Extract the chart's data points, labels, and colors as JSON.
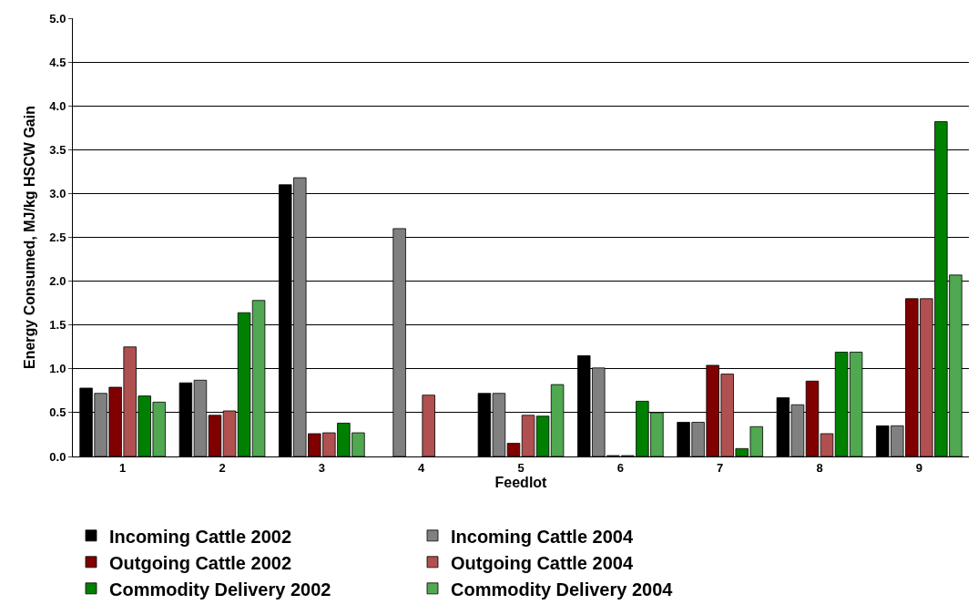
{
  "chart_data": {
    "type": "bar",
    "xlabel": "Feedlot",
    "ylabel": "Energy Consumed, MJ/kg HSCW Gain",
    "categories": [
      "1",
      "2",
      "3",
      "4",
      "5",
      "6",
      "7",
      "8",
      "9"
    ],
    "series": [
      {
        "name": "Incoming Cattle 2002",
        "color": "#000000",
        "values": [
          0.78,
          0.84,
          3.1,
          null,
          0.72,
          1.15,
          0.39,
          0.67,
          0.35
        ]
      },
      {
        "name": "Incoming Cattle 2004",
        "color": "#808080",
        "values": [
          0.72,
          0.87,
          3.18,
          2.6,
          0.72,
          1.01,
          0.39,
          0.59,
          0.35
        ]
      },
      {
        "name": "Outgoing Cattle 2002",
        "color": "#800000",
        "values": [
          0.79,
          0.47,
          0.26,
          null,
          0.15,
          0.01,
          1.04,
          0.86,
          1.8
        ]
      },
      {
        "name": "Outgoing Cattle 2004",
        "color": "#b05050",
        "values": [
          1.25,
          0.52,
          0.27,
          0.7,
          0.47,
          0.01,
          0.94,
          0.26,
          1.8
        ]
      },
      {
        "name": "Commodity Delivery 2002",
        "color": "#008000",
        "values": [
          0.69,
          1.64,
          0.38,
          null,
          0.46,
          0.63,
          0.09,
          1.19,
          3.82
        ]
      },
      {
        "name": "Commodity Delivery 2004",
        "color": "#50a850",
        "values": [
          0.62,
          1.78,
          0.27,
          null,
          0.82,
          0.5,
          0.34,
          1.19,
          2.07
        ]
      }
    ],
    "ylim": [
      0,
      5
    ],
    "yticks": [
      {
        "value": 0,
        "label": "0.0"
      },
      {
        "value": 0.5,
        "label": "0.5"
      },
      {
        "value": 1,
        "label": "1.0"
      },
      {
        "value": 1.5,
        "label": "1.5"
      },
      {
        "value": 2,
        "label": "2.0"
      },
      {
        "value": 2.5,
        "label": "2.5"
      },
      {
        "value": 3,
        "label": "3.0"
      },
      {
        "value": 3.5,
        "label": "3.5"
      },
      {
        "value": 4,
        "label": "4.0"
      },
      {
        "value": 4.5,
        "label": "4.5"
      },
      {
        "value": 5,
        "label": "5.0"
      }
    ],
    "grid": "y",
    "legend": "bottom"
  }
}
